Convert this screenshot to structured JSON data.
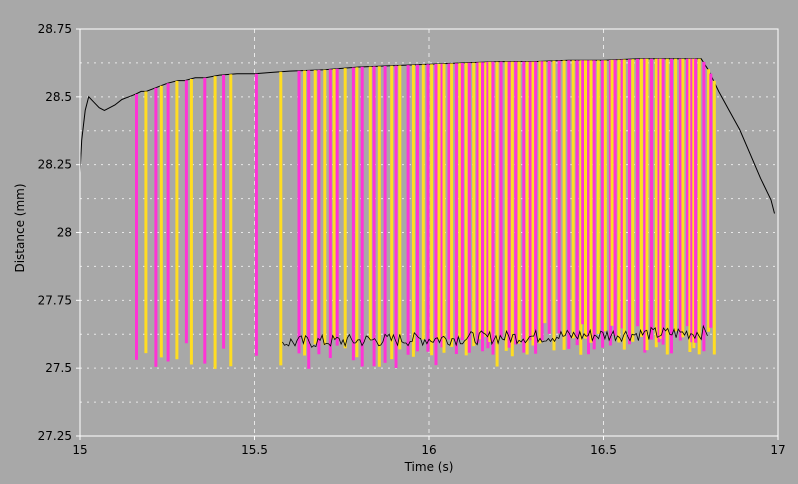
{
  "chart_data": {
    "type": "line",
    "title": "",
    "xlabel": "Time (s)",
    "ylabel": "Distance (mm)",
    "xlim": [
      15,
      17
    ],
    "ylim": [
      27.25,
      28.75
    ],
    "x_ticks": [
      "15",
      "15.5",
      "16",
      "16.5",
      "17"
    ],
    "y_ticks": [
      "27.25",
      "27.5",
      "27.75",
      "28",
      "28.25",
      "28.5",
      "28.75"
    ],
    "grid": true,
    "legend": "none",
    "colors": {
      "background": "#a8a8a8",
      "plot_area": "#a8a8a8",
      "grid": "#e8e8e8",
      "axis": "#ffffff",
      "baseline": "#000000",
      "series_magenta": "#ff33d6",
      "series_yellow": "#ffdd22"
    },
    "series": [
      {
        "color": "#000000",
        "x": [
          15.0,
          15.005,
          15.015,
          15.025,
          15.04,
          15.055,
          15.07,
          15.085,
          15.1,
          15.12,
          15.14,
          15.16,
          15.175,
          15.19,
          15.21,
          15.23,
          15.25,
          15.28,
          15.3,
          15.33,
          15.36,
          15.4,
          15.45,
          15.5,
          15.55,
          15.6,
          15.7,
          15.8,
          15.9,
          16.0,
          16.1,
          16.2,
          16.3,
          16.4,
          16.5,
          16.6,
          16.7,
          16.78,
          16.8,
          16.83,
          16.86,
          16.89,
          16.92,
          16.95,
          16.98,
          16.99
        ],
        "values": [
          28.22,
          28.34,
          28.45,
          28.5,
          28.48,
          28.46,
          28.45,
          28.46,
          28.47,
          28.49,
          28.5,
          28.51,
          28.52,
          28.52,
          28.53,
          28.54,
          28.55,
          28.56,
          28.56,
          28.57,
          28.57,
          28.58,
          28.585,
          28.585,
          28.59,
          28.595,
          28.6,
          28.61,
          28.615,
          28.62,
          28.625,
          28.63,
          28.63,
          28.635,
          28.635,
          28.64,
          28.64,
          28.64,
          28.6,
          28.52,
          28.45,
          28.38,
          28.29,
          28.2,
          28.12,
          28.07
        ]
      }
    ]
  }
}
